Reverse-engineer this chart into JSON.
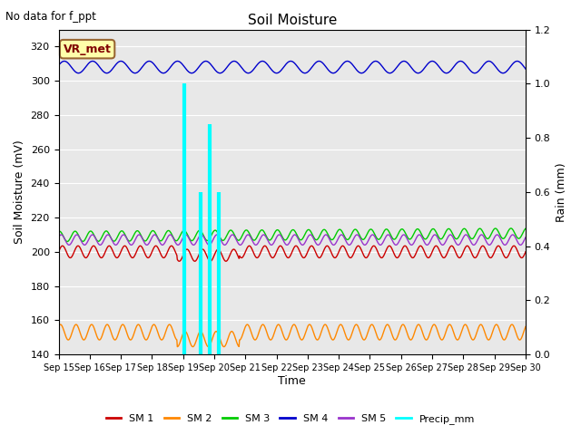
{
  "title": "Soil Moisture",
  "top_left_text": "No data for f_ppt",
  "xlabel": "Time",
  "ylabel_left": "Soil Moisture (mV)",
  "ylabel_right": "Rain (mm)",
  "ylim_left": [
    140,
    330
  ],
  "ylim_right": [
    0.0,
    1.2
  ],
  "yticks_left": [
    140,
    160,
    180,
    200,
    220,
    240,
    260,
    280,
    300,
    320
  ],
  "yticks_right": [
    0.0,
    0.2,
    0.4,
    0.6,
    0.8,
    1.0,
    1.2
  ],
  "sm1_base": 200,
  "sm1_amp": 3.5,
  "sm2_base": 153,
  "sm2_amp": 4.5,
  "sm3_base": 209,
  "sm3_amp": 3.0,
  "sm4_base": 308,
  "sm4_amp": 3.5,
  "sm5_base": 207,
  "sm5_amp": 3.0,
  "precip_events": [
    {
      "day": 4.05,
      "val": 1.0
    },
    {
      "day": 4.55,
      "val": 0.6
    },
    {
      "day": 4.85,
      "val": 0.85
    },
    {
      "day": 5.15,
      "val": 0.6
    }
  ],
  "colors": {
    "sm1": "#cc0000",
    "sm2": "#ff8800",
    "sm3": "#00cc00",
    "sm4": "#0000cc",
    "sm5": "#9933cc",
    "precip": "cyan",
    "background": "#e8e8e8",
    "grid": "#ffffff"
  },
  "legend_entries": [
    "SM 1",
    "SM 2",
    "SM 3",
    "SM 4",
    "SM 5",
    "Precip_mm"
  ],
  "annotation_box": {
    "text": "VR_met",
    "facecolor": "#ffffaa",
    "edgecolor": "#996633",
    "textcolor": "#800000"
  }
}
